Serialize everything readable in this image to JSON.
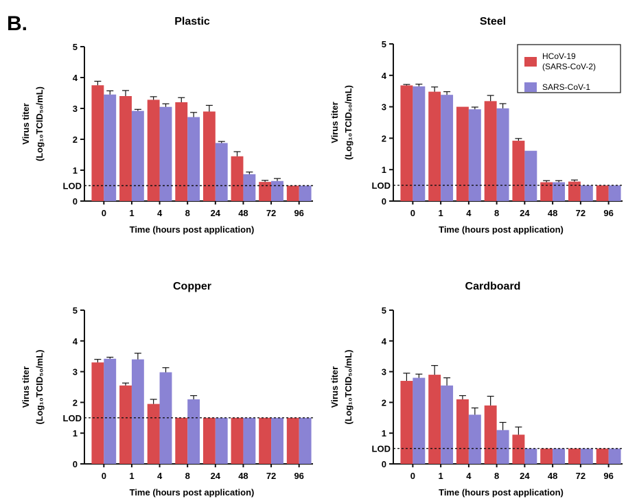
{
  "figure": {
    "panel_letter": "B.",
    "colors": {
      "series1": "#d94a4d",
      "series2": "#8a83d4",
      "axis": "#111111"
    },
    "legend": {
      "placement": "top-right",
      "entries": [
        {
          "line1": "HCoV-19",
          "line2": "(SARS-CoV-2)"
        },
        {
          "line1": "SARS-CoV-1",
          "line2": ""
        }
      ]
    }
  },
  "chart_data": [
    {
      "type": "bar",
      "title": "Plastic",
      "xlabel": "Time (hours post application)",
      "ylabel_line1": "Virus titer",
      "ylabel_line2": "(Log₁₀TCID₅₀/mL)",
      "categories": [
        "0",
        "1",
        "4",
        "8",
        "24",
        "48",
        "72",
        "96"
      ],
      "ylim": [
        0,
        5
      ],
      "yticks": [
        "0",
        "1",
        "2",
        "3",
        "4",
        "5"
      ],
      "lod": {
        "label": "LOD",
        "value": 0.5
      },
      "series": [
        {
          "name": "HCoV-19 (SARS-CoV-2)",
          "values": [
            3.75,
            3.4,
            3.28,
            3.2,
            2.9,
            1.45,
            0.62,
            0.5
          ],
          "errors": [
            0.13,
            0.18,
            0.1,
            0.15,
            0.2,
            0.15,
            0.05,
            0
          ]
        },
        {
          "name": "SARS-CoV-1",
          "values": [
            3.45,
            2.92,
            3.05,
            2.72,
            1.88,
            0.87,
            0.65,
            0.5
          ],
          "errors": [
            0.12,
            0.05,
            0.1,
            0.15,
            0.05,
            0.07,
            0.08,
            0
          ]
        }
      ]
    },
    {
      "type": "bar",
      "title": "Steel",
      "xlabel": "Time (hours post application)",
      "ylabel_line1": "Virus titer",
      "ylabel_line2": "(Log₁₀TCID₅₀/mL)",
      "categories": [
        "0",
        "1",
        "4",
        "8",
        "24",
        "48",
        "72",
        "96"
      ],
      "ylim": [
        0,
        5
      ],
      "yticks": [
        "0",
        "1",
        "2",
        "3",
        "4",
        "5"
      ],
      "lod": {
        "label": "LOD",
        "value": 0.5
      },
      "series": [
        {
          "name": "HCoV-19 (SARS-CoV-2)",
          "values": [
            3.68,
            3.48,
            3.0,
            3.18,
            1.92,
            0.6,
            0.62,
            0.5
          ],
          "errors": [
            0.03,
            0.15,
            0,
            0.18,
            0.07,
            0.05,
            0.05,
            0
          ]
        },
        {
          "name": "SARS-CoV-1",
          "values": [
            3.65,
            3.38,
            2.92,
            2.95,
            1.6,
            0.6,
            0.5,
            0.5
          ],
          "errors": [
            0.07,
            0.1,
            0.07,
            0.15,
            0,
            0.05,
            0,
            0
          ]
        }
      ]
    },
    {
      "type": "bar",
      "title": "Copper",
      "xlabel": "Time (hours post application)",
      "ylabel_line1": "Virus titer",
      "ylabel_line2": "(Log₁₀TCID₅₀/mL)",
      "categories": [
        "0",
        "1",
        "4",
        "8",
        "24",
        "48",
        "72",
        "96"
      ],
      "ylim": [
        0,
        5
      ],
      "yticks": [
        "0",
        "1",
        "2",
        "3",
        "4",
        "5"
      ],
      "lod": {
        "label": "LOD",
        "value": 1.5
      },
      "series": [
        {
          "name": "HCoV-19 (SARS-CoV-2)",
          "values": [
            3.3,
            2.55,
            1.95,
            1.5,
            1.5,
            1.5,
            1.5,
            1.5
          ],
          "errors": [
            0.1,
            0.08,
            0.15,
            0,
            0,
            0,
            0,
            0
          ]
        },
        {
          "name": "SARS-CoV-1",
          "values": [
            3.42,
            3.4,
            2.98,
            2.1,
            1.5,
            1.5,
            1.5,
            1.5
          ],
          "errors": [
            0.05,
            0.2,
            0.15,
            0.12,
            0,
            0,
            0,
            0
          ]
        }
      ]
    },
    {
      "type": "bar",
      "title": "Cardboard",
      "xlabel": "Time (hours post application)",
      "ylabel_line1": "Virus titer",
      "ylabel_line2": "(Log₁₀TCID₅₀/mL)",
      "categories": [
        "0",
        "1",
        "4",
        "8",
        "24",
        "48",
        "72",
        "96"
      ],
      "ylim": [
        0,
        5
      ],
      "yticks": [
        "0",
        "1",
        "2",
        "3",
        "4",
        "5"
      ],
      "lod": {
        "label": "LOD",
        "value": 0.5
      },
      "series": [
        {
          "name": "HCoV-19 (SARS-CoV-2)",
          "values": [
            2.7,
            2.9,
            2.1,
            1.9,
            0.95,
            0.5,
            0.5,
            0.5
          ],
          "errors": [
            0.25,
            0.3,
            0.12,
            0.3,
            0.25,
            0,
            0,
            0
          ]
        },
        {
          "name": "SARS-CoV-1",
          "values": [
            2.8,
            2.55,
            1.6,
            1.1,
            0.5,
            0.5,
            0.5,
            0.5
          ],
          "errors": [
            0.12,
            0.25,
            0.22,
            0.25,
            0,
            0,
            0,
            0
          ]
        }
      ]
    }
  ]
}
